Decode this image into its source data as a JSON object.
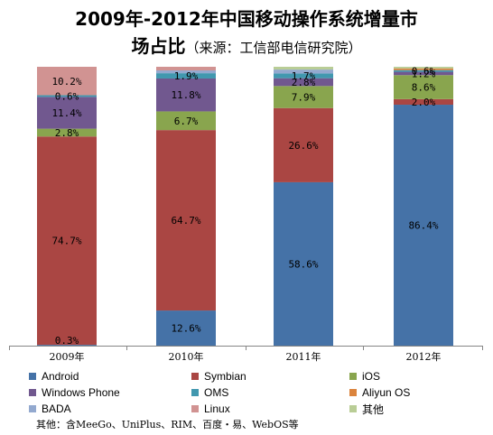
{
  "title_line1": "2009年-2012年中国移动操作系统增量市",
  "title_line2_main": "场占比",
  "title_line2_sub": "（来源：工信部电信研究院）",
  "note": "其他：含MeeGo、UniPlus、RIM、百度・易、WebOS等",
  "chart_data": {
    "type": "bar",
    "stacked": true,
    "percent_stacked": true,
    "categories": [
      "2009年",
      "2010年",
      "2011年",
      "2012年"
    ],
    "ylim": [
      0,
      100
    ],
    "grid": false,
    "legend_position": "bottom",
    "series": [
      {
        "name": "Android",
        "color": "#4572a7",
        "values": [
          0.3,
          12.6,
          58.6,
          86.4
        ],
        "labels": [
          "0.3%",
          "12.6%",
          "58.6%",
          "86.4%"
        ]
      },
      {
        "name": "Symbian",
        "color": "#aa4643",
        "values": [
          74.7,
          64.7,
          26.6,
          2.0
        ],
        "labels": [
          "74.7%",
          "64.7%",
          "26.6%",
          "2.0%"
        ]
      },
      {
        "name": "iOS",
        "color": "#89a54e",
        "values": [
          2.8,
          6.7,
          7.9,
          8.6
        ],
        "labels": [
          "2.8%",
          "6.7%",
          "7.9%",
          "8.6%"
        ]
      },
      {
        "name": "Windows Phone",
        "color": "#71588f",
        "values": [
          11.4,
          11.8,
          2.8,
          1.2
        ],
        "labels": [
          "11.4%",
          "11.8%",
          "2.8%",
          "1.2%"
        ]
      },
      {
        "name": "OMS",
        "color": "#4198af",
        "values": [
          0.6,
          1.9,
          1.7,
          0.6
        ],
        "labels": [
          "0.6%",
          "1.9%",
          "1.7%",
          "0.6%"
        ]
      },
      {
        "name": "Aliyun OS",
        "color": "#db843d",
        "values": [
          0,
          0,
          0,
          0.6
        ],
        "labels": [
          "",
          "",
          "",
          ""
        ]
      },
      {
        "name": "BADA",
        "color": "#93a9cf",
        "values": [
          0,
          1.0,
          1.4,
          0
        ],
        "labels": [
          "",
          "",
          "",
          ""
        ]
      },
      {
        "name": "Linux",
        "color": "#d19392",
        "values": [
          10.2,
          1.3,
          0,
          0
        ],
        "labels": [
          "10.2%",
          "",
          "",
          ""
        ]
      },
      {
        "name": "其他",
        "color": "#b9cd96",
        "values": [
          0,
          0,
          1.0,
          0.6
        ],
        "labels": [
          "",
          "",
          "",
          ""
        ]
      }
    ]
  }
}
